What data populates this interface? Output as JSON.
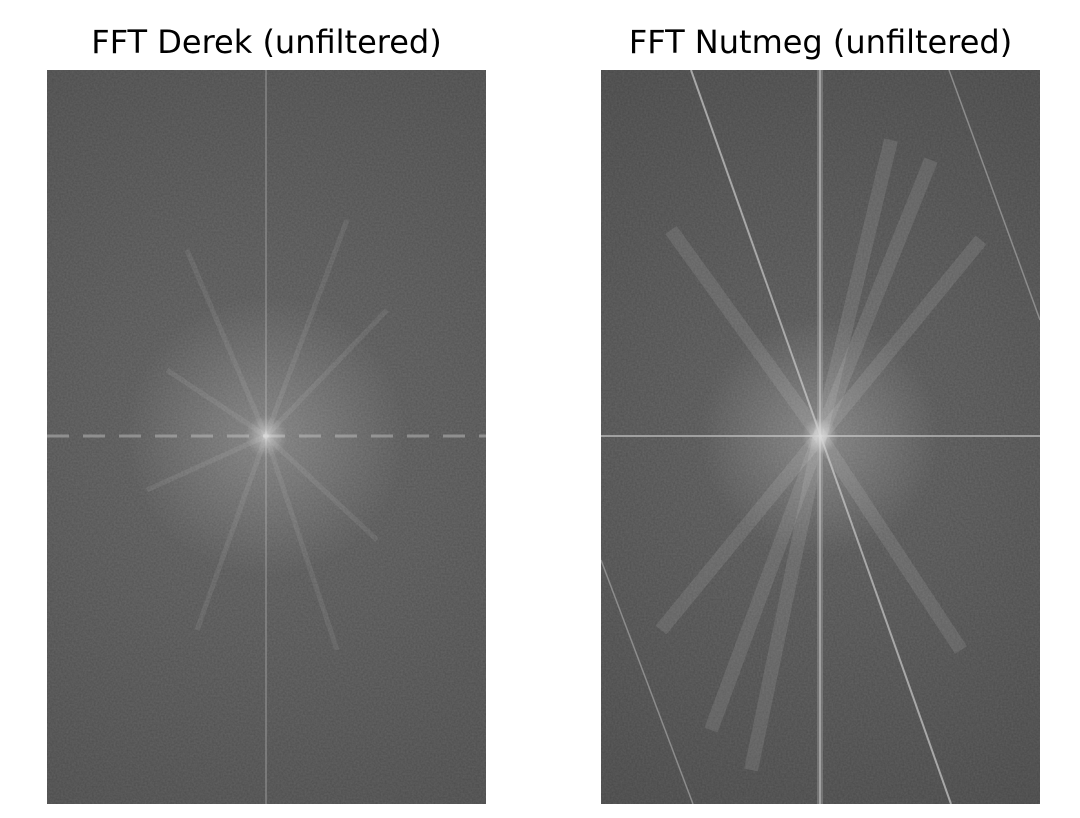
{
  "panels": [
    {
      "title": "FFT Derek (unfiltered)",
      "kind": "log-magnitude frequency spectrum",
      "base_color": "#585858"
    },
    {
      "title": "FFT Nutmeg (unfiltered)",
      "kind": "log-magnitude frequency spectrum",
      "base_color": "#555555"
    }
  ]
}
